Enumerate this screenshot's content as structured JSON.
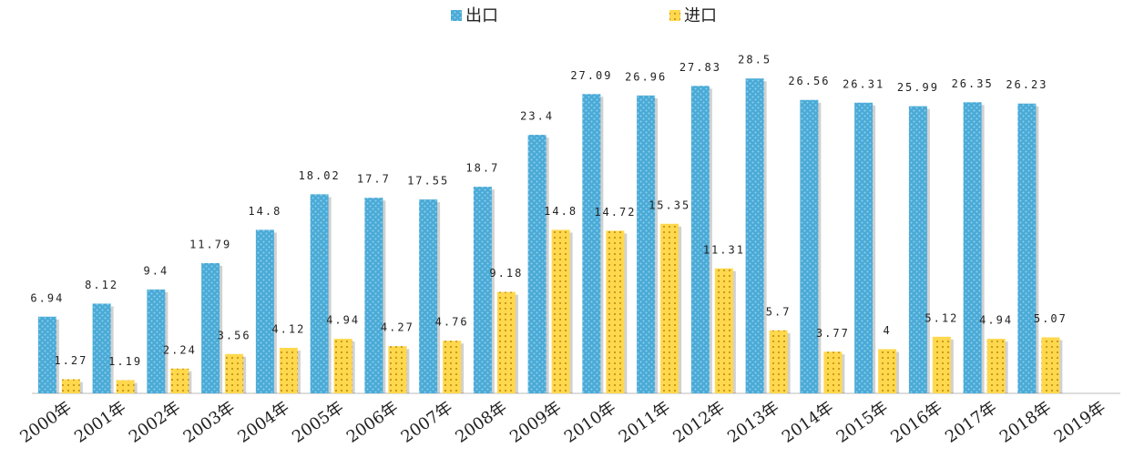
{
  "chart_data": {
    "type": "bar",
    "categories": [
      "2000年",
      "2001年",
      "2002年",
      "2003年",
      "2004年",
      "2005年",
      "2006年",
      "2007年",
      "2008年",
      "2009年",
      "2010年",
      "2011年",
      "2012年",
      "2013年",
      "2014年",
      "2015年",
      "2016年",
      "2017年",
      "2018年",
      "2019年"
    ],
    "series": [
      {
        "name": "出口",
        "color": "#4aaad6",
        "values": [
          6.94,
          8.12,
          9.4,
          11.79,
          14.8,
          18.02,
          17.7,
          17.55,
          18.7,
          23.4,
          27.09,
          26.96,
          27.83,
          28.5,
          26.56,
          26.31,
          25.99,
          26.35,
          26.23,
          null
        ]
      },
      {
        "name": "进口",
        "color": "#ffd84d",
        "values": [
          1.27,
          1.19,
          2.24,
          3.56,
          4.12,
          4.94,
          4.27,
          4.76,
          9.18,
          14.8,
          14.72,
          15.35,
          11.31,
          5.7,
          3.77,
          4,
          5.12,
          4.94,
          5.07,
          null
        ]
      }
    ],
    "ylim": [
      0,
      30
    ]
  }
}
